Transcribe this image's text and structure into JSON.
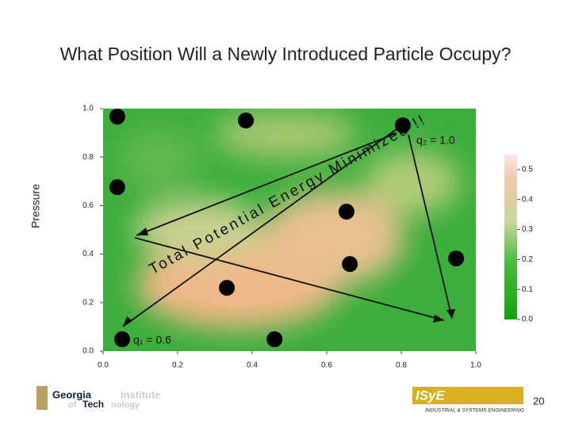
{
  "title": "What Position Will a Newly Introduced Particle Occupy?",
  "chart_data": {
    "type": "scatter",
    "y_label": "Pressure",
    "x": [
      0.038,
      0.383,
      0.804,
      0.038,
      0.653,
      0.662,
      0.947,
      0.332,
      0.051,
      0.46
    ],
    "values": [
      0.967,
      0.951,
      0.931,
      0.676,
      0.575,
      0.359,
      0.382,
      0.261,
      0.049,
      0.049
    ],
    "color": "#000000",
    "xlim": [
      0,
      1
    ],
    "ylim": [
      0,
      1
    ],
    "xticks": [
      {
        "value": 0,
        "label": "0.0"
      },
      {
        "value": 0.2,
        "label": "0.2"
      },
      {
        "value": 0.4,
        "label": "0.4"
      },
      {
        "value": 0.6,
        "label": "0.6"
      },
      {
        "value": 0.8,
        "label": "0.8"
      },
      {
        "value": 1,
        "label": "1.0"
      }
    ],
    "yticks": [
      {
        "value": 0,
        "label": "0.0"
      },
      {
        "value": 0.2,
        "label": "0.2"
      },
      {
        "value": 0.4,
        "label": "0.4"
      },
      {
        "value": 0.6,
        "label": "0.6"
      },
      {
        "value": 0.8,
        "label": "0.8"
      },
      {
        "value": 1,
        "label": "1.0"
      }
    ],
    "colorbar": {
      "lim": [
        0,
        0.55
      ],
      "ticks": [
        {
          "value": 0,
          "label": "0.0"
        },
        {
          "value": 0.1,
          "label": "0.1"
        },
        {
          "value": 0.2,
          "label": "0.2"
        },
        {
          "value": 0.3,
          "label": "0.3"
        },
        {
          "value": 0.4,
          "label": "0.4"
        },
        {
          "value": 0.5,
          "label": "0.5"
        }
      ]
    },
    "annotations": [
      "q₂ = 1.0",
      "q₁ = 0.6",
      "Total Potential Energy Minimized !!"
    ]
  },
  "footer": {
    "page_number": "20",
    "left_logo": [
      "Georgia",
      "Institute",
      "of",
      "Tech",
      "nology"
    ],
    "right_logo": [
      "ISyE",
      "INDUSTRIAL & SYSTEMS ENGINEERING"
    ]
  }
}
